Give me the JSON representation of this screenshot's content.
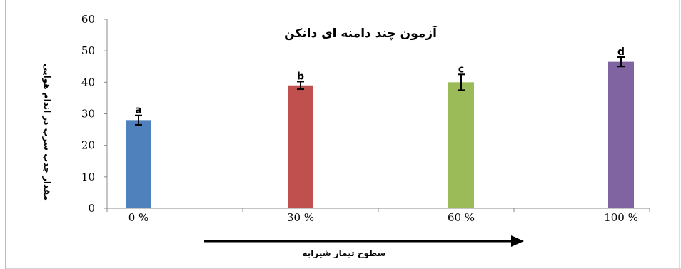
{
  "chart_data": {
    "type": "bar",
    "title": "آزمون چند دامنه ای دانکن",
    "ylabel": "مقدار جذب سرب در اندام هوایی",
    "xlabel": "سطوح تیمار شیرابه",
    "categories": [
      "0 %",
      "30 %",
      "60 %",
      "100 %"
    ],
    "values": [
      28,
      39,
      40,
      46.5
    ],
    "errors": [
      1.5,
      1.2,
      2.5,
      1.5
    ],
    "significance": [
      "a",
      "b",
      "c",
      "d"
    ],
    "colors": [
      "#4f81bd",
      "#c0504d",
      "#9bbb59",
      "#8064a2"
    ],
    "ylim": [
      0,
      60
    ],
    "yticks": [
      0,
      10,
      20,
      30,
      40,
      50,
      60
    ],
    "grid": false,
    "legend": "none"
  }
}
